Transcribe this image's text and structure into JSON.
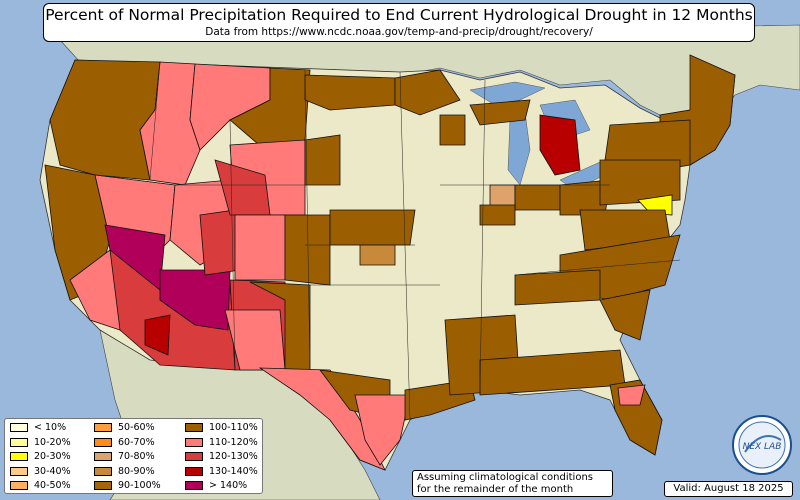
{
  "title": "Percent of Normal Precipitation Required to End Current Hydrological Drought in 12 Months",
  "subtitle": "Data from https://www.ncdc.noaa.gov/temp-and-precip/drought/recovery/",
  "note_line1": "Assuming climatological conditions",
  "note_line2": "for the remainder of the month",
  "valid": "Valid: August 18 2025",
  "logo_text": "NEX LAB",
  "colors": {
    "ocean": "#9ab8dc",
    "land_us": "#ece9c8",
    "land_other": "#d7dcc0",
    "lakes": "#7ea7d6"
  },
  "legend": [
    {
      "label": "< 10%",
      "color": "#ffffe0"
    },
    {
      "label": "10-20%",
      "color": "#ffff99"
    },
    {
      "label": "20-30%",
      "color": "#ffff00"
    },
    {
      "label": "30-40%",
      "color": "#ffcc88"
    },
    {
      "label": "40-50%",
      "color": "#ffb060"
    },
    {
      "label": "50-60%",
      "color": "#ff9e3a"
    },
    {
      "label": "60-70%",
      "color": "#ff8c1a"
    },
    {
      "label": "70-80%",
      "color": "#dea36a"
    },
    {
      "label": "80-90%",
      "color": "#c8893a"
    },
    {
      "label": "90-100%",
      "color": "#a7650a"
    },
    {
      "label": "100-110%",
      "color": "#9b5e00"
    },
    {
      "label": "110-120%",
      "color": "#ff7a78"
    },
    {
      "label": "120-130%",
      "color": "#d83c3c"
    },
    {
      "label": "130-140%",
      "color": "#b80000"
    },
    {
      "label": "> 140%",
      "color": "#b0005a"
    }
  ]
}
